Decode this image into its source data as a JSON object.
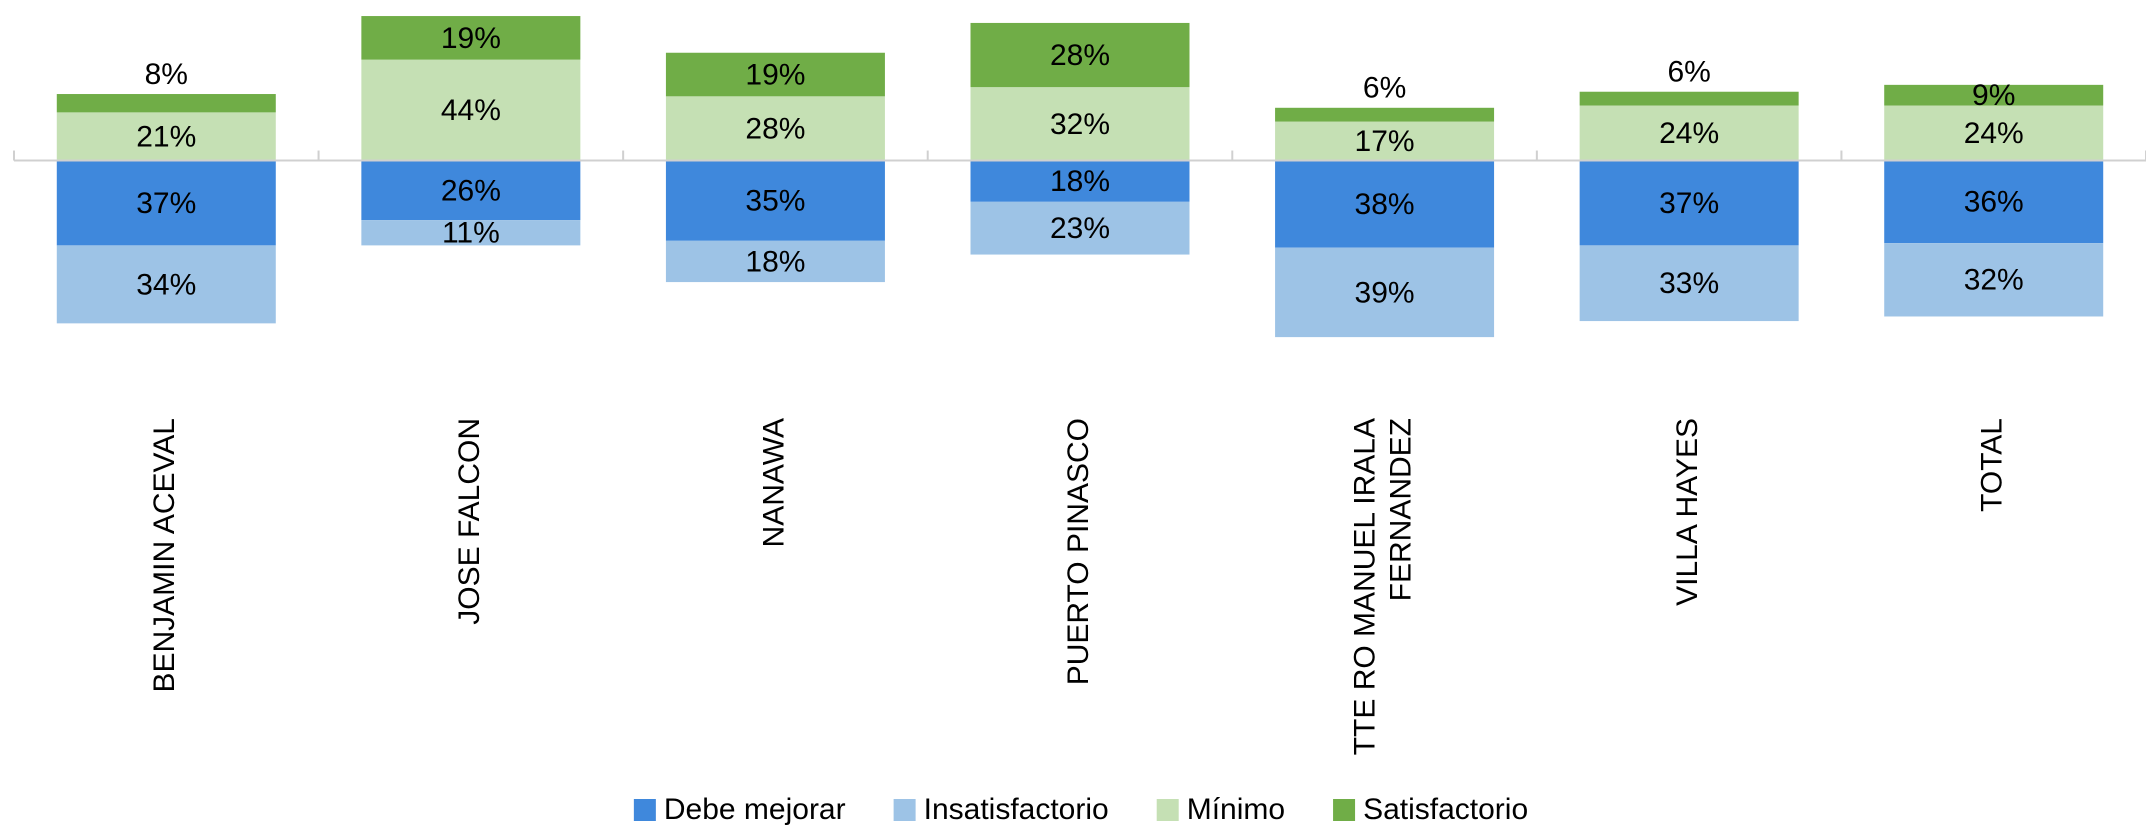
{
  "chart_data": {
    "type": "diverging_stacked_bar",
    "categories": [
      "BENJAMIN ACEVAL",
      "JOSE FALCON",
      "NANAWA",
      "PUERTO PINASCO",
      "TTE RO MANUEL IRALA FERNANDEZ",
      "VILLA HAYES",
      "TOTAL"
    ],
    "series": [
      {
        "name": "Debe mejorar",
        "color": "#3f88dc",
        "values": [
          -37,
          -26,
          -35,
          -18,
          -38,
          -37,
          -36
        ],
        "value_labels": [
          "37%",
          "26%",
          "35%",
          "18%",
          "38%",
          "37%",
          "36%"
        ]
      },
      {
        "name": "Insatisfactorio",
        "color": "#9dc3e6",
        "values": [
          -34,
          -11,
          -18,
          -23,
          -39,
          -33,
          -32
        ],
        "value_labels": [
          "34%",
          "11%",
          "18%",
          "23%",
          "39%",
          "33%",
          "32%"
        ]
      },
      {
        "name": "Mínimo",
        "color": "#c5e0b4",
        "values": [
          21,
          44,
          28,
          32,
          17,
          24,
          24
        ],
        "value_labels": [
          "21%",
          "44%",
          "28%",
          "32%",
          "17%",
          "24%",
          "24%"
        ]
      },
      {
        "name": "Satisfactorio",
        "color": "#70ad47",
        "values": [
          8,
          19,
          19,
          28,
          6,
          6,
          9
        ],
        "value_labels": [
          "8%",
          "19%",
          "19%",
          "28%",
          "6%",
          "6%",
          "9%"
        ]
      }
    ],
    "ylim": [
      -80,
      70
    ],
    "legend": "bottom"
  }
}
